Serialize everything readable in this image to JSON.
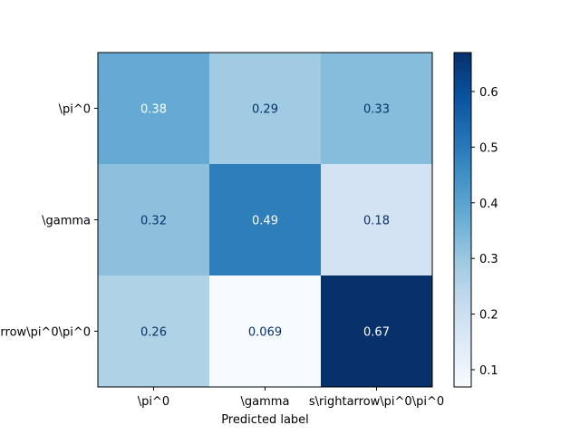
{
  "chart_data": {
    "type": "heatmap",
    "title": "",
    "xlabel": "Predicted label",
    "ylabel": "",
    "x_categories": [
      "\\pi^0",
      "\\gamma",
      "s\\rightarrow\\pi^0\\pi^0"
    ],
    "y_categories": [
      "\\pi^0",
      "\\gamma",
      "rrow\\pi^0\\pi^0"
    ],
    "values": [
      [
        0.38,
        0.29,
        0.33
      ],
      [
        0.32,
        0.49,
        0.18
      ],
      [
        0.26,
        0.069,
        0.67
      ]
    ],
    "value_labels": [
      [
        "0.38",
        "0.29",
        "0.33"
      ],
      [
        "0.32",
        "0.49",
        "0.18"
      ],
      [
        "0.26",
        "0.069",
        "0.67"
      ]
    ],
    "colormap": "Blues",
    "colorbar": {
      "range": [
        0.069,
        0.67
      ],
      "ticks": [
        0.1,
        0.2,
        0.3,
        0.4,
        0.5,
        0.6
      ],
      "tick_labels": [
        "0.1",
        "0.2",
        "0.3",
        "0.4",
        "0.5",
        "0.6"
      ]
    },
    "grid": false,
    "text_color_dark": "#08306b",
    "text_color_light": "#ffffff"
  }
}
